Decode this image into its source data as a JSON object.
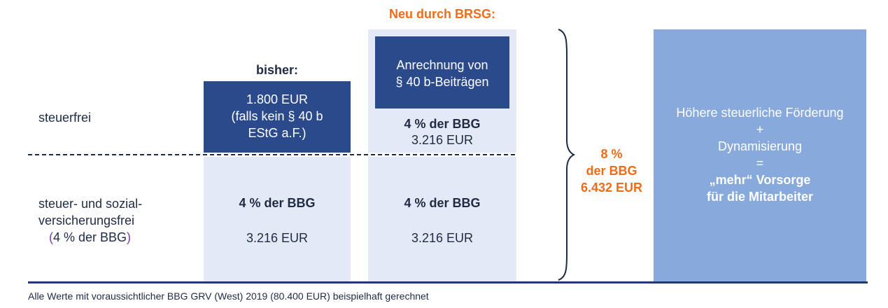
{
  "header": {
    "neu_title": "Neu durch BRSG:",
    "bisher_title": "bisher:"
  },
  "rows": {
    "steuerfrei": "steuerfrei",
    "sozial_line1": "steuer- und sozial-",
    "sozial_line2": "versicherungsfrei",
    "sozial_paren_open": "(",
    "sozial_line3": "4 % der BBG",
    "sozial_paren_close": ")"
  },
  "bisher": {
    "box_line1": "1.800 EUR",
    "box_line2": "(falls kein § 40 b",
    "box_line3": "EStG a.F.)",
    "lower_bold": "4 % der BBG",
    "lower_value": "3.216 EUR"
  },
  "neu": {
    "box_line1": "Anrechnung von",
    "box_line2": "§ 40 b-Beiträgen",
    "upper_bold": "4 % der BBG",
    "upper_value": "3.216 EUR",
    "lower_bold": "4 % der BBG",
    "lower_value": "3.216 EUR"
  },
  "total": {
    "line1": "8 %",
    "line2": "der BBG",
    "line3": "6.432 EUR"
  },
  "result": {
    "line1": "Höhere steuerliche Förderung",
    "line2": "+",
    "line3": "Dynamisierung",
    "line4": "=",
    "line5": "„mehr“ Vorsorge",
    "line6": "für die Mitarbeiter"
  },
  "footnote": "Alle Werte mit voraussichtlicher BBG GRV (West) 2019 (80.400 EUR) beispielhaft gerechnet",
  "colors": {
    "dark_blue": "#2a4a8c",
    "light_blue": "#e4eaf5",
    "result_blue": "#87a9db",
    "orange": "#ef6c1a",
    "base_line": "#1f3a70"
  }
}
